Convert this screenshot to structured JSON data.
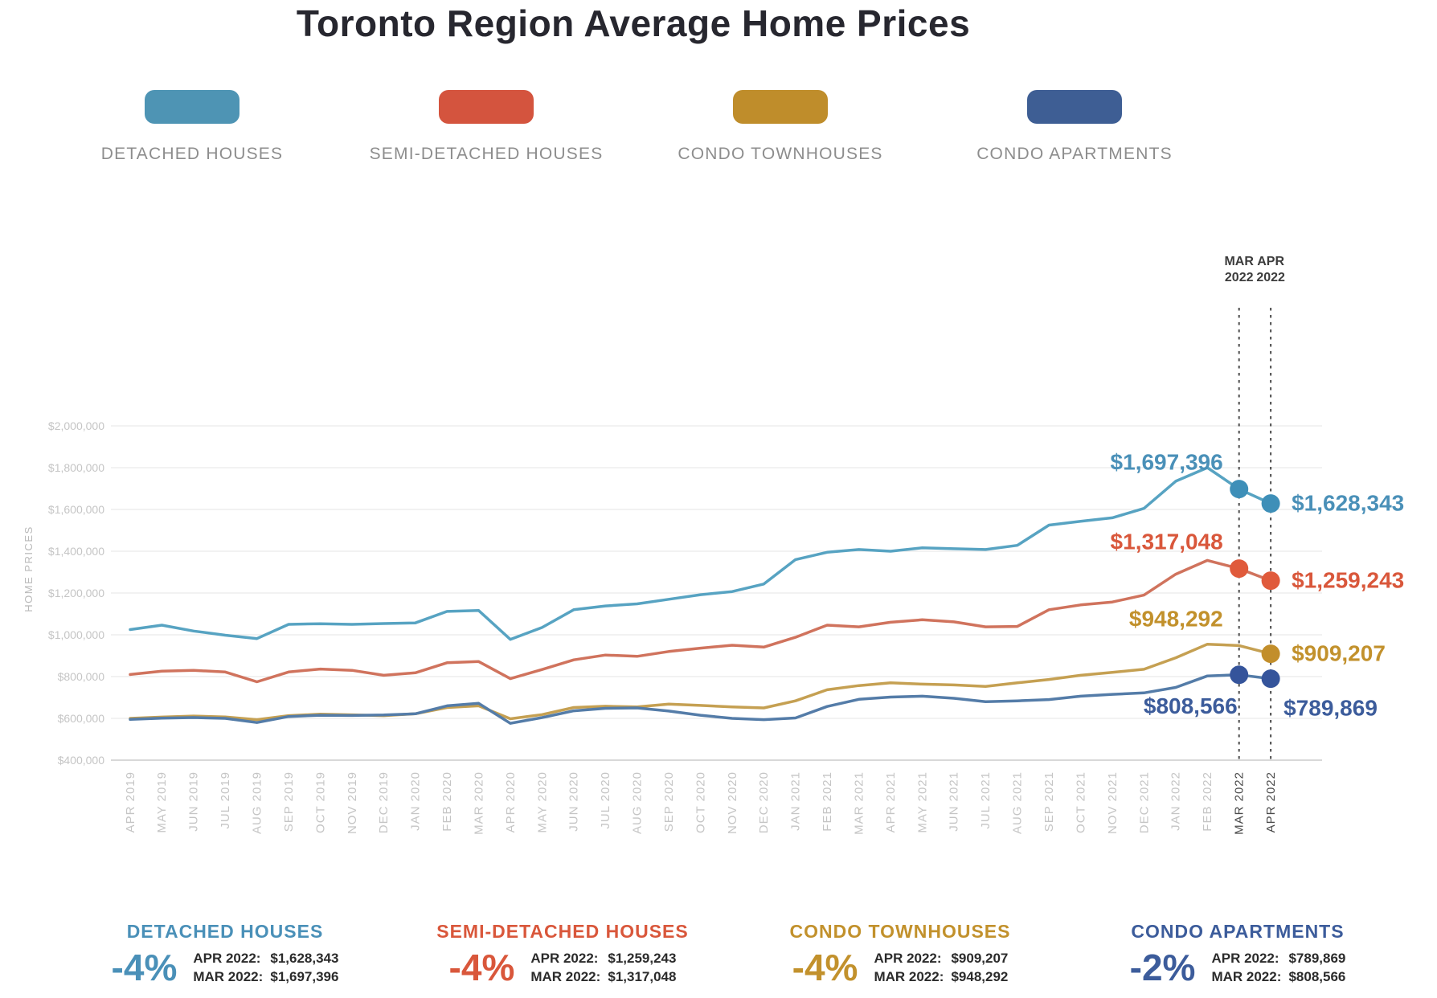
{
  "title": "Toronto Region Average Home Prices",
  "legend": {
    "items": [
      {
        "label": "DETACHED HOUSES",
        "color": "#4E94B4"
      },
      {
        "label": "SEMI-DETACHED HOUSES",
        "color": "#D4543E"
      },
      {
        "label": "CONDO TOWNHOUSES",
        "color": "#BF8D2B"
      },
      {
        "label": "CONDO APARTMENTS",
        "color": "#3E5E94"
      }
    ]
  },
  "chart_data": {
    "type": "line",
    "title": "Toronto Region Average Home Prices",
    "ylabel": "HOME PRICES",
    "xlabel": "",
    "grid": true,
    "ylim": [
      400000,
      2000000
    ],
    "y_ticks": [
      {
        "value": 2000000,
        "label": "$2,000,000"
      },
      {
        "value": 1800000,
        "label": "$1,800,000"
      },
      {
        "value": 1600000,
        "label": "$1,600,000"
      },
      {
        "value": 1400000,
        "label": "$1,400,000"
      },
      {
        "value": 1200000,
        "label": "$1,200,000"
      },
      {
        "value": 1000000,
        "label": "$1,000,000"
      },
      {
        "value": 800000,
        "label": "$800,000"
      },
      {
        "value": 600000,
        "label": "$600,000"
      },
      {
        "value": 400000,
        "label": "$400,000"
      }
    ],
    "categories": [
      "APR 2019",
      "MAY 2019",
      "JUN 2019",
      "JUL 2019",
      "AUG 2019",
      "SEP 2019",
      "OCT 2019",
      "NOV 2019",
      "DEC 2019",
      "JAN 2020",
      "FEB 2020",
      "MAR 2020",
      "APR 2020",
      "MAY 2020",
      "JUN 2020",
      "JUL 2020",
      "AUG 2020",
      "SEP 2020",
      "OCT 2020",
      "NOV 2020",
      "DEC 2020",
      "JAN 2021",
      "FEB 2021",
      "MAR 2021",
      "APR 2021",
      "MAY 2021",
      "JUN 2021",
      "JUL 2021",
      "AUG 2021",
      "SEP 2021",
      "OCT 2021",
      "NOV 2021",
      "DEC 2021",
      "JAN 2022",
      "FEB 2022",
      "MAR 2022",
      "APR 2022"
    ],
    "highlight": {
      "mar_index": 35,
      "apr_index": 36,
      "mar_label_lines": [
        "MAR",
        "2022"
      ],
      "apr_label_lines": [
        "APR",
        "2022"
      ]
    },
    "series": [
      {
        "name": "DETACHED HOUSES",
        "line_color": "#57A3C2",
        "dot_color": "#3E8FB8",
        "label_color": "#4A90B8",
        "values": [
          1025000,
          1046000,
          1018000,
          998000,
          982000,
          1050000,
          1053000,
          1050000,
          1054000,
          1057000,
          1112000,
          1116000,
          978000,
          1035000,
          1120000,
          1138000,
          1148000,
          1170000,
          1192000,
          1207000,
          1243000,
          1360000,
          1395000,
          1408000,
          1400000,
          1416000,
          1412000,
          1408000,
          1428000,
          1525000,
          1543000,
          1560000,
          1605000,
          1735000,
          1800000,
          1697396,
          1628343
        ],
        "markers": [
          35,
          36
        ],
        "annotations": [
          {
            "index": 35,
            "text": "$1,697,396",
            "placement": "above-left"
          },
          {
            "index": 36,
            "text": "$1,628,343",
            "placement": "right"
          }
        ]
      },
      {
        "name": "SEMI-DETACHED HOUSES",
        "line_color": "#D0735D",
        "dot_color": "#E05A3B",
        "label_color": "#D9573B",
        "values": [
          810000,
          826000,
          830000,
          822000,
          775000,
          822000,
          836000,
          830000,
          806000,
          818000,
          866000,
          872000,
          790000,
          834000,
          880000,
          903000,
          897000,
          920000,
          936000,
          950000,
          941000,
          988000,
          1046000,
          1038000,
          1060000,
          1072000,
          1062000,
          1038000,
          1040000,
          1120000,
          1143000,
          1157000,
          1190000,
          1290000,
          1356000,
          1317048,
          1259243
        ],
        "markers": [
          35,
          36
        ],
        "annotations": [
          {
            "index": 35,
            "text": "$1,317,048",
            "placement": "above-left"
          },
          {
            "index": 36,
            "text": "$1,259,243",
            "placement": "right"
          }
        ]
      },
      {
        "name": "CONDO TOWNHOUSES",
        "line_color": "#C5A052",
        "dot_color": "#C28E2B",
        "label_color": "#C2912C",
        "values": [
          600000,
          606000,
          611000,
          607000,
          594000,
          613000,
          620000,
          617000,
          613000,
          622000,
          652000,
          660000,
          598000,
          618000,
          652000,
          658000,
          655000,
          668000,
          662000,
          655000,
          650000,
          684000,
          737000,
          757000,
          770000,
          764000,
          760000,
          753000,
          770000,
          786000,
          806000,
          820000,
          835000,
          890000,
          955000,
          948292,
          909207
        ],
        "markers": [
          36
        ],
        "annotations": [
          {
            "index": 35,
            "text": "$948,292",
            "placement": "above-left"
          },
          {
            "index": 36,
            "text": "$909,207",
            "placement": "right"
          }
        ]
      },
      {
        "name": "CONDO APARTMENTS",
        "line_color": "#547CA8",
        "dot_color": "#35549B",
        "label_color": "#3C5C9B",
        "values": [
          595000,
          601000,
          604000,
          600000,
          580000,
          609000,
          615000,
          614000,
          616000,
          622000,
          660000,
          672000,
          576000,
          604000,
          636000,
          648000,
          650000,
          635000,
          615000,
          600000,
          594000,
          602000,
          657000,
          691000,
          702000,
          706000,
          696000,
          680000,
          684000,
          690000,
          706000,
          715000,
          722000,
          748000,
          803000,
          808566,
          789869
        ],
        "markers": [
          35,
          36
        ],
        "annotations": [
          {
            "index": 35,
            "text": "$808,566",
            "placement": "below-left"
          },
          {
            "index": 36,
            "text": "$789,869",
            "placement": "below-right"
          }
        ]
      }
    ]
  },
  "summary": {
    "cards": [
      {
        "title": "DETACHED HOUSES",
        "color": "#4A90B8",
        "change": "-4%",
        "rows": [
          {
            "label": "APR 2022:",
            "value": "$1,628,343"
          },
          {
            "label": "MAR 2022:",
            "value": "$1,697,396"
          }
        ]
      },
      {
        "title": "SEMI-DETACHED HOUSES",
        "color": "#D9573B",
        "change": "-4%",
        "rows": [
          {
            "label": "APR 2022:",
            "value": "$1,259,243"
          },
          {
            "label": "MAR 2022:",
            "value": "$1,317,048"
          }
        ]
      },
      {
        "title": "CONDO TOWNHOUSES",
        "color": "#C2912C",
        "change": "-4%",
        "rows": [
          {
            "label": "APR 2022:",
            "value": "$909,207"
          },
          {
            "label": "MAR 2022:",
            "value": "$948,292"
          }
        ]
      },
      {
        "title": "CONDO APARTMENTS",
        "color": "#3C5C9B",
        "change": "-2%",
        "rows": [
          {
            "label": "APR 2022:",
            "value": "$789,869"
          },
          {
            "label": "MAR 2022:",
            "value": "$808,566"
          }
        ]
      }
    ]
  }
}
